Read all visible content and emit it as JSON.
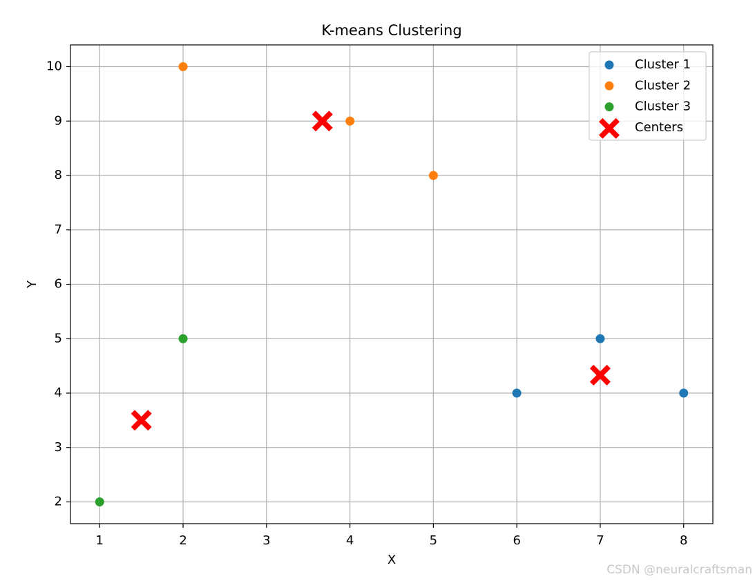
{
  "chart_data": {
    "type": "scatter",
    "title": "K-means Clustering",
    "xlabel": "X",
    "ylabel": "Y",
    "xlim": [
      0.65,
      8.35
    ],
    "ylim": [
      1.6,
      10.4
    ],
    "xticks": [
      1,
      2,
      3,
      4,
      5,
      6,
      7,
      8
    ],
    "yticks": [
      2,
      3,
      4,
      5,
      6,
      7,
      8,
      9,
      10
    ],
    "grid": true,
    "legend_position": "top-right",
    "series": [
      {
        "name": "Cluster 1",
        "color": "#1f77b4",
        "marker": "circle",
        "points": [
          [
            6,
            4
          ],
          [
            7,
            5
          ],
          [
            8,
            4
          ]
        ]
      },
      {
        "name": "Cluster 2",
        "color": "#ff7f0e",
        "marker": "circle",
        "points": [
          [
            2,
            10
          ],
          [
            4,
            9
          ],
          [
            5,
            8
          ]
        ]
      },
      {
        "name": "Cluster 3",
        "color": "#2ca02c",
        "marker": "circle",
        "points": [
          [
            1,
            2
          ],
          [
            2,
            5
          ]
        ]
      },
      {
        "name": "Centers",
        "color": "#ff0000",
        "marker": "x-filled",
        "points": [
          [
            7,
            4.33
          ],
          [
            3.67,
            9
          ],
          [
            1.5,
            3.5
          ]
        ]
      }
    ]
  },
  "watermark": "CSDN @neuralcraftsman"
}
